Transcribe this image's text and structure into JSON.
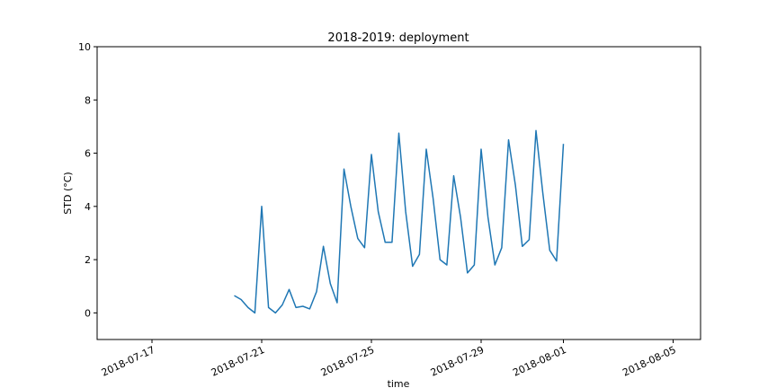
{
  "chart_data": {
    "type": "line",
    "title": "2018-2019: deployment",
    "xlabel": "time",
    "ylabel": "STD (°C)",
    "xlim": [
      "2018-07-15T00:00",
      "2018-08-06T00:00"
    ],
    "ylim": [
      -1,
      10
    ],
    "yticks": [
      0,
      2,
      4,
      6,
      8,
      10
    ],
    "xticks": [
      "2018-07-17",
      "2018-07-21",
      "2018-07-25",
      "2018-07-29",
      "2018-08-01",
      "2018-08-05"
    ],
    "grid": false,
    "series": [
      {
        "color": "#1f77b4",
        "x": [
          "2018-07-20T00:00",
          "2018-07-20T06:00",
          "2018-07-20T12:00",
          "2018-07-20T18:00",
          "2018-07-21T00:00",
          "2018-07-21T06:00",
          "2018-07-21T12:00",
          "2018-07-21T18:00",
          "2018-07-22T00:00",
          "2018-07-22T06:00",
          "2018-07-22T12:00",
          "2018-07-22T18:00",
          "2018-07-23T00:00",
          "2018-07-23T06:00",
          "2018-07-23T12:00",
          "2018-07-23T18:00",
          "2018-07-24T00:00",
          "2018-07-24T06:00",
          "2018-07-24T12:00",
          "2018-07-24T18:00",
          "2018-07-25T00:00",
          "2018-07-25T06:00",
          "2018-07-25T12:00",
          "2018-07-25T18:00",
          "2018-07-26T00:00",
          "2018-07-26T06:00",
          "2018-07-26T12:00",
          "2018-07-26T18:00",
          "2018-07-27T00:00",
          "2018-07-27T06:00",
          "2018-07-27T12:00",
          "2018-07-27T18:00",
          "2018-07-28T00:00",
          "2018-07-28T06:00",
          "2018-07-28T12:00",
          "2018-07-28T18:00",
          "2018-07-29T00:00",
          "2018-07-29T06:00",
          "2018-07-29T12:00",
          "2018-07-29T18:00",
          "2018-07-30T00:00",
          "2018-07-30T06:00",
          "2018-07-30T12:00",
          "2018-07-30T18:00",
          "2018-07-31T00:00",
          "2018-07-31T06:00",
          "2018-07-31T12:00",
          "2018-07-31T18:00",
          "2018-08-01T00:00"
        ],
        "values": [
          0.65,
          0.5,
          0.2,
          0.0,
          4.0,
          0.2,
          0.0,
          0.3,
          0.88,
          0.2,
          0.25,
          0.15,
          0.8,
          2.5,
          1.1,
          0.38,
          5.4,
          4.0,
          2.8,
          2.45,
          5.95,
          3.8,
          2.65,
          2.65,
          6.75,
          3.8,
          1.75,
          2.2,
          6.15,
          4.3,
          2.0,
          1.8,
          5.15,
          3.6,
          1.5,
          1.8,
          6.15,
          3.6,
          1.8,
          2.45,
          6.5,
          4.8,
          2.5,
          2.75,
          6.85,
          4.5,
          2.35,
          1.95,
          6.35
        ]
      }
    ]
  }
}
